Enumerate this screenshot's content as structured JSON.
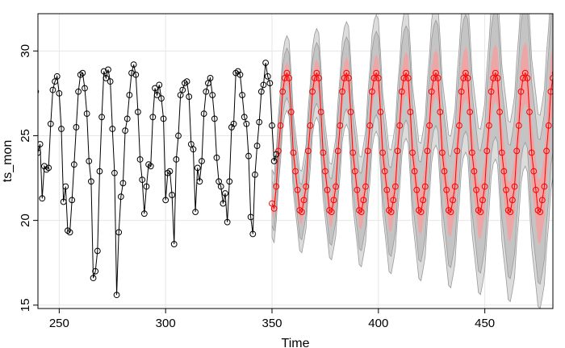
{
  "chart_data": {
    "type": "line",
    "xlabel": "Time",
    "ylabel": "ts_mon",
    "xlim": [
      240,
      482
    ],
    "ylim": [
      14.8,
      32.2
    ],
    "x_ticks": [
      250,
      300,
      350,
      400,
      450
    ],
    "y_ticks": [
      15,
      20,
      25,
      30
    ],
    "grid": true,
    "colors": {
      "observed": "#000000",
      "forecast": "#ff0000",
      "band_outer": "#dcdcdc",
      "band_mid": "#c4c4c4",
      "band_inner": "#f6a0a0",
      "band_line": "#9a9a9a",
      "grid": "#e6e6e6"
    },
    "observed": {
      "x_start": 239,
      "values": [
        27.6,
        24.0,
        24.5,
        21.3,
        23.2,
        23.0,
        23.1,
        25.7,
        27.7,
        28.2,
        28.5,
        27.5,
        25.4,
        21.1,
        22.0,
        19.4,
        19.3,
        21.2,
        23.3,
        25.5,
        27.6,
        28.6,
        28.7,
        27.8,
        26.3,
        23.5,
        22.3,
        16.6,
        17.0,
        18.2,
        22.9,
        26.1,
        28.8,
        28.4,
        28.9,
        28.2,
        25.4,
        22.8,
        15.6,
        19.3,
        21.4,
        22.2,
        25.3,
        26.0,
        27.4,
        28.7,
        29.2,
        28.6,
        26.4,
        23.6,
        22.4,
        20.4,
        22.0,
        23.3,
        23.2,
        26.1,
        27.8,
        27.4,
        28.0,
        27.2,
        26.0,
        21.2,
        22.8,
        22.9,
        21.5,
        18.6,
        23.6,
        25.0,
        27.4,
        27.7,
        28.1,
        28.2,
        27.3,
        24.5,
        24.2,
        20.5,
        23.1,
        22.3,
        23.5,
        26.3,
        27.6,
        28.1,
        28.4,
        27.4,
        26.0,
        23.7,
        22.3,
        22.0,
        21.0,
        21.6,
        19.9,
        22.3,
        25.5,
        25.7,
        28.7,
        28.8,
        28.6,
        27.4,
        26.1,
        25.7,
        23.8,
        20.2,
        19.2,
        22.7,
        24.4,
        25.8,
        27.6,
        28.0,
        29.3,
        28.5,
        28.1,
        25.6,
        23.5,
        23.9
      ]
    },
    "forecast": {
      "x_start": 350,
      "values": [
        21.0,
        20.7,
        22.0,
        24.1,
        25.6,
        27.6,
        28.4,
        28.7,
        28.4,
        26.4,
        24.0,
        22.9,
        21.8,
        20.6,
        20.5,
        21.2,
        22.0,
        24.1,
        25.6,
        27.6,
        28.4,
        28.7,
        28.4,
        26.4,
        24.0,
        22.9,
        21.8,
        20.6,
        20.5,
        21.2,
        22.0,
        24.1,
        25.6,
        27.6,
        28.4,
        28.7,
        28.4,
        26.4,
        24.0,
        22.9,
        21.8,
        20.6,
        20.5,
        21.2,
        22.0,
        24.1,
        25.6,
        27.6,
        28.4,
        28.7,
        28.4,
        26.4,
        24.0,
        22.9,
        21.8,
        20.6,
        20.5,
        21.2,
        22.0,
        24.1,
        25.6,
        27.6,
        28.4,
        28.7,
        28.4,
        26.4,
        24.0,
        22.9,
        21.8,
        20.6,
        20.5,
        21.2,
        22.0,
        24.1,
        25.6,
        27.6,
        28.4,
        28.7,
        28.4,
        26.4,
        24.0,
        22.9,
        21.8,
        20.6,
        20.5,
        21.2,
        22.0,
        24.1,
        25.6,
        27.6,
        28.4,
        28.7,
        28.4,
        26.4,
        24.0,
        22.9,
        21.8,
        20.6,
        20.5,
        21.2,
        22.0,
        24.1,
        25.6,
        27.6,
        28.4,
        28.7,
        28.4,
        26.4,
        24.0,
        22.9,
        21.8,
        20.6,
        20.5,
        21.2,
        22.0,
        24.1,
        25.6,
        27.6,
        28.4,
        28.7,
        28.4,
        26.4,
        24.0,
        22.9,
        21.8,
        20.6,
        20.5,
        21.2,
        22.0,
        24.1,
        25.6,
        27.6,
        28.4,
        28.7,
        28.4,
        26.4,
        23.0
      ],
      "band_half_widths": {
        "inner_start": 0.6,
        "inner_growth": 1.4,
        "mid_start": 1.3,
        "mid_growth": 3.2,
        "outer_start": 2.0,
        "outer_growth": 4.0
      }
    }
  }
}
